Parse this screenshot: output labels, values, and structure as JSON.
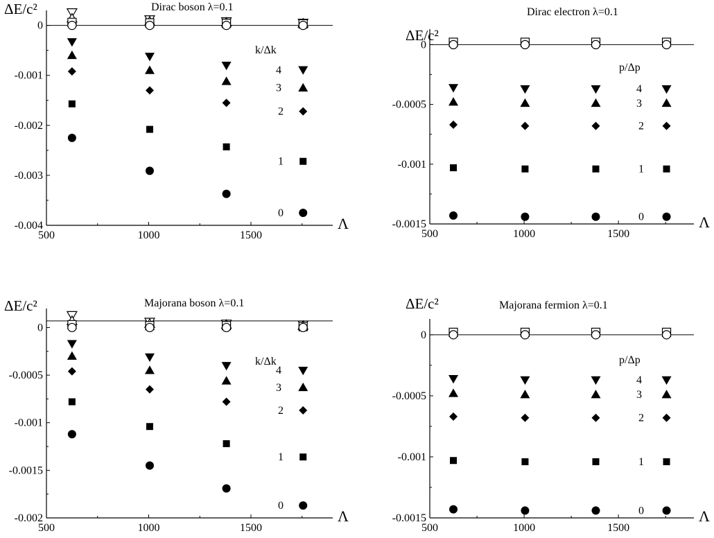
{
  "figure": {
    "legend_title_boson": "k/Δk",
    "legend_title_fermion": "p/Δp"
  },
  "chart_data": [
    {
      "type": "scatter",
      "title": "Dirac boson λ=0.1",
      "ylabel": "ΔE/c²",
      "xlabel": "Λ",
      "xlim": [
        500,
        1900
      ],
      "ylim": [
        -0.004,
        0.0003
      ],
      "xticks": [
        500,
        1000,
        1500
      ],
      "xtick_labels": [
        "500",
        "1000",
        "1500"
      ],
      "yticks": [
        0,
        -0.001,
        -0.002,
        -0.003,
        -0.004
      ],
      "ytick_labels": [
        "0",
        "-0.001",
        "-0.002",
        "-0.003",
        "-0.004"
      ],
      "reference_line": 0,
      "x": [
        625,
        1005,
        1380,
        1755
      ],
      "legend_title": "k/Δk",
      "series": [
        {
          "name": "4",
          "marker": "triangle-down-filled",
          "values": [
            -0.00033,
            -0.00062,
            -0.0008,
            -0.00089
          ]
        },
        {
          "name": "3",
          "marker": "triangle-up-filled",
          "values": [
            -0.0006,
            -0.0009,
            -0.00112,
            -0.00125
          ]
        },
        {
          "name": "2",
          "marker": "diamond-filled",
          "values": [
            -0.00092,
            -0.0013,
            -0.00155,
            -0.00172
          ]
        },
        {
          "name": "1",
          "marker": "square-filled",
          "values": [
            -0.00157,
            -0.00208,
            -0.00243,
            -0.00272
          ]
        },
        {
          "name": "0",
          "marker": "circle-filled",
          "values": [
            -0.00225,
            -0.00291,
            -0.00337,
            -0.00375
          ]
        },
        {
          "marker": "triangle-down-open",
          "values": [
            0.00026,
            0.00012,
            8e-05,
            5e-05
          ]
        },
        {
          "marker": "triangle-up-open",
          "values": [
            0.00014,
            8e-05,
            6e-05,
            4e-05
          ]
        },
        {
          "marker": "square-open",
          "values": [
            6e-05,
            5e-05,
            4e-05,
            3e-05
          ]
        },
        {
          "marker": "circle-open",
          "values": [
            0.0,
            0.0,
            0.0,
            0.0
          ]
        }
      ]
    },
    {
      "type": "scatter",
      "title": "Dirac electron λ=0.1",
      "ylabel": "ΔE/c²",
      "xlabel": "Λ",
      "xlim": [
        500,
        1900
      ],
      "ylim": [
        -0.0015,
        0.00013
      ],
      "xticks": [
        500,
        1000,
        1500
      ],
      "xtick_labels": [
        "500",
        "1000",
        "1500"
      ],
      "yticks": [
        0,
        -0.0005,
        -0.001,
        -0.0015
      ],
      "ytick_labels": [
        "0",
        "-0.0005",
        "-0.001",
        "-0.0015"
      ],
      "reference_line": 0,
      "x": [
        625,
        1005,
        1380,
        1755
      ],
      "legend_title": "p/Δp",
      "series": [
        {
          "name": "4",
          "marker": "triangle-down-filled",
          "values": [
            -0.00036,
            -0.00037,
            -0.00037,
            -0.00037
          ]
        },
        {
          "name": "3",
          "marker": "triangle-up-filled",
          "values": [
            -0.00048,
            -0.00049,
            -0.00049,
            -0.00049
          ]
        },
        {
          "name": "2",
          "marker": "diamond-filled",
          "values": [
            -0.00067,
            -0.00068,
            -0.00068,
            -0.00068
          ]
        },
        {
          "name": "1",
          "marker": "square-filled",
          "values": [
            -0.00103,
            -0.00104,
            -0.00104,
            -0.00104
          ]
        },
        {
          "name": "0",
          "marker": "circle-filled",
          "values": [
            -0.00143,
            -0.00144,
            -0.00144,
            -0.00144
          ]
        },
        {
          "marker": "square-open",
          "values": [
            2e-05,
            2e-05,
            2e-05,
            2e-05
          ]
        },
        {
          "marker": "circle-open",
          "values": [
            0.0,
            0.0,
            0.0,
            0.0
          ]
        }
      ]
    },
    {
      "type": "scatter",
      "title": "Majorana boson λ=0.1",
      "ylabel": "ΔE/c²",
      "xlabel": "Λ",
      "xlim": [
        500,
        1900
      ],
      "ylim": [
        -0.002,
        0.0002
      ],
      "xticks": [
        500,
        1000,
        1500
      ],
      "xtick_labels": [
        "500",
        "1000",
        "1500"
      ],
      "yticks": [
        0,
        -0.0005,
        -0.001,
        -0.0015,
        -0.002
      ],
      "ytick_labels": [
        "0",
        "-0.0005",
        "-0.001",
        "-0.0015",
        "-0.002"
      ],
      "reference_line": 7e-05,
      "x": [
        625,
        1005,
        1380,
        1755
      ],
      "legend_title": "k/Δk",
      "series": [
        {
          "name": "4",
          "marker": "triangle-down-filled",
          "values": [
            -0.00017,
            -0.00031,
            -0.0004,
            -0.00045
          ]
        },
        {
          "name": "3",
          "marker": "triangle-up-filled",
          "values": [
            -0.0003,
            -0.00045,
            -0.00056,
            -0.00063
          ]
        },
        {
          "name": "2",
          "marker": "diamond-filled",
          "values": [
            -0.00046,
            -0.00065,
            -0.00078,
            -0.00087
          ]
        },
        {
          "name": "1",
          "marker": "square-filled",
          "values": [
            -0.00078,
            -0.00104,
            -0.00122,
            -0.00136
          ]
        },
        {
          "name": "0",
          "marker": "circle-filled",
          "values": [
            -0.00112,
            -0.00145,
            -0.00169,
            -0.00187
          ]
        },
        {
          "marker": "triangle-down-open",
          "values": [
            0.00013,
            6e-05,
            4e-05,
            3e-05
          ]
        },
        {
          "marker": "triangle-up-open",
          "values": [
            7e-05,
            4e-05,
            3e-05,
            2e-05
          ]
        },
        {
          "marker": "square-open",
          "values": [
            3e-05,
            2e-05,
            2e-05,
            1e-05
          ]
        },
        {
          "marker": "circle-open",
          "values": [
            0.0,
            0.0,
            0.0,
            0.0
          ]
        }
      ]
    },
    {
      "type": "scatter",
      "title": "Majorana fermion λ=0.1",
      "ylabel": "ΔE/c²",
      "xlabel": "Λ",
      "xlim": [
        500,
        1900
      ],
      "ylim": [
        -0.0015,
        0.00013
      ],
      "xticks": [
        500,
        1000,
        1500
      ],
      "xtick_labels": [
        "500",
        "1000",
        "1500"
      ],
      "yticks": [
        0,
        -0.0005,
        -0.001,
        -0.0015
      ],
      "ytick_labels": [
        "0",
        "-0.0005",
        "-0.001",
        "-0.0015"
      ],
      "reference_line": 0,
      "x": [
        625,
        1005,
        1380,
        1755
      ],
      "legend_title": "p/Δp",
      "series": [
        {
          "name": "4",
          "marker": "triangle-down-filled",
          "values": [
            -0.00036,
            -0.00037,
            -0.00037,
            -0.00037
          ]
        },
        {
          "name": "3",
          "marker": "triangle-up-filled",
          "values": [
            -0.00048,
            -0.00049,
            -0.00049,
            -0.00049
          ]
        },
        {
          "name": "2",
          "marker": "diamond-filled",
          "values": [
            -0.00067,
            -0.00068,
            -0.00068,
            -0.00068
          ]
        },
        {
          "name": "1",
          "marker": "square-filled",
          "values": [
            -0.00103,
            -0.00104,
            -0.00104,
            -0.00104
          ]
        },
        {
          "name": "0",
          "marker": "circle-filled",
          "values": [
            -0.00143,
            -0.00144,
            -0.00144,
            -0.00144
          ]
        },
        {
          "marker": "square-open",
          "values": [
            2e-05,
            2e-05,
            2e-05,
            2e-05
          ]
        },
        {
          "marker": "circle-open",
          "values": [
            0.0,
            0.0,
            0.0,
            0.0
          ]
        }
      ]
    }
  ]
}
